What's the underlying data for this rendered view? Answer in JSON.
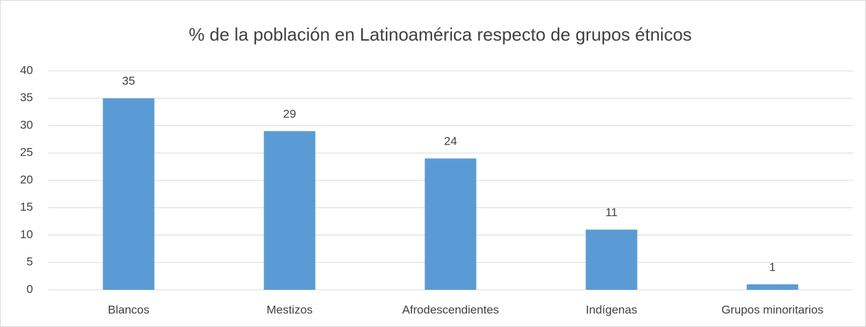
{
  "chart_data": {
    "type": "bar",
    "title": "% de la población en Latinoamérica respecto de grupos étnicos",
    "categories": [
      "Blancos",
      "Mestizos",
      "Afrodescendientes",
      "Indígenas",
      "Grupos minoritarios"
    ],
    "values": [
      35,
      29,
      24,
      11,
      1
    ],
    "color": "#5b9bd5",
    "ylim": [
      0,
      40
    ],
    "yticks": [
      0,
      5,
      10,
      15,
      20,
      25,
      30,
      35,
      40
    ],
    "grid": true,
    "data_labels": true
  }
}
